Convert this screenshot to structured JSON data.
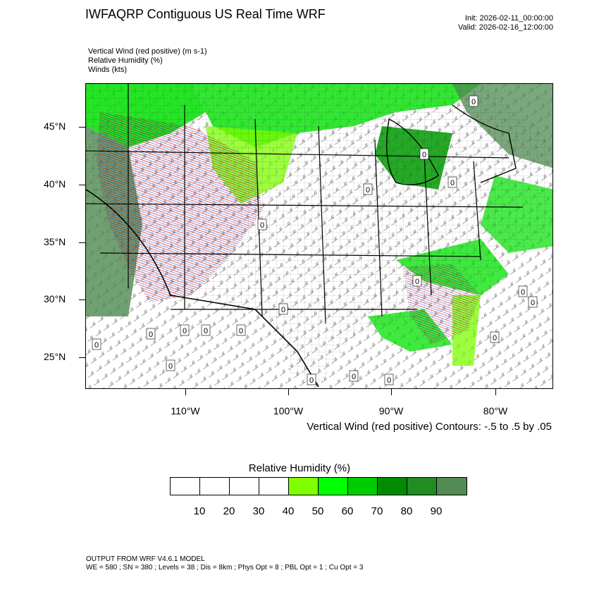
{
  "header": {
    "title": "IWFAQRP Contiguous US Real Time WRF",
    "init": "Init: 2026-02-11_00:00:00",
    "valid": "Valid: 2026-02-16_12:00:00"
  },
  "fields": [
    "Vertical Wind (red positive)   (m s-1)",
    "Relative Humidity   (%)",
    "Winds   (kts)"
  ],
  "map": {
    "lat_labels": [
      "45°N",
      "40°N",
      "35°N",
      "30°N",
      "25°N"
    ],
    "lon_labels": [
      "110°W",
      "100°W",
      "90°W",
      "80°W"
    ],
    "contour_marker_label": "0",
    "colors": {
      "moist_light": "#7cfc00",
      "moist_mid": "#00e000",
      "moist_dark": "#009a00",
      "moist_darkest": "#4e8a50",
      "updraft": "#cc0000",
      "downdraft": "#0000cc",
      "boundaries": "#000000"
    }
  },
  "contour_note": "Vertical Wind (red positive) Contours: -.5 to .5 by .05",
  "colorbar": {
    "title": "Relative Humidity  (%)",
    "colors": [
      "#ffffff",
      "#ffffff",
      "#ffffff",
      "#ffffff",
      "#80ff00",
      "#00ff00",
      "#00cd00",
      "#008b00",
      "#228b22",
      "#548b54"
    ],
    "labels": [
      "10",
      "20",
      "30",
      "40",
      "50",
      "60",
      "70",
      "80",
      "90"
    ]
  },
  "footer": {
    "line1": "OUTPUT FROM WRF V4.6.1 MODEL",
    "line2": "WE = 580 ; SN = 380 ; Levels = 38 ; Dis = 8km ; Phys Opt = 8 ; PBL Opt = 1 ; Cu Opt = 3"
  }
}
